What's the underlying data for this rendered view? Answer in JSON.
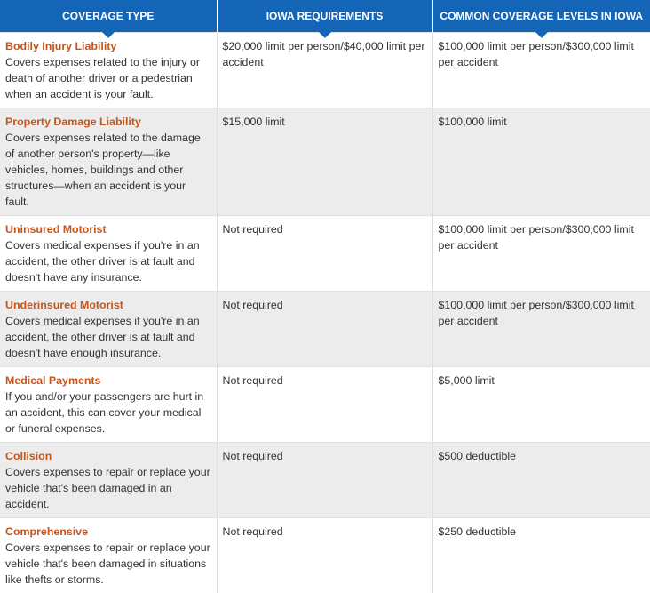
{
  "headers": [
    "COVERAGE TYPE",
    "IOWA REQUIREMENTS",
    "COMMON COVERAGE LEVELS IN IOWA"
  ],
  "rows": [
    {
      "title": "Bodily Injury Liability",
      "desc": "Covers expenses related to the injury or death of another driver or a pedestrian when an accident is your fault.",
      "requirement": "$20,000 limit per person/$40,000 limit per accident",
      "common": "$100,000 limit per person/$300,000 limit per accident"
    },
    {
      "title": "Property Damage Liability",
      "desc": "Covers expenses related to the damage of another person's property—like vehicles, homes, buildings and other structures—when an accident is your fault.",
      "requirement": "$15,000 limit",
      "common": "$100,000 limit"
    },
    {
      "title": "Uninsured Motorist",
      "desc": "Covers medical expenses if you're in an accident, the other driver is at fault and doesn't have any insurance.",
      "requirement": "Not required",
      "common": "$100,000 limit per person/$300,000 limit per accident"
    },
    {
      "title": "Underinsured Motorist",
      "desc": "Covers medical expenses if you're in an accident, the other driver is at fault and doesn't have enough insurance.",
      "requirement": "Not required",
      "common": "$100,000 limit per person/$300,000 limit per accident"
    },
    {
      "title": "Medical Payments",
      "desc": "If you and/or your passengers are hurt in an accident, this can cover your medical or funeral expenses.",
      "requirement": "Not required",
      "common": "$5,000 limit"
    },
    {
      "title": "Collision",
      "desc": "Covers expenses to repair or replace your vehicle that's been damaged in an accident.",
      "requirement": "Not required",
      "common": "$500 deductible"
    },
    {
      "title": "Comprehensive",
      "desc": "Covers expenses to repair or replace your vehicle that's been damaged in situations like thefts or storms.",
      "requirement": "Not required",
      "common": "$250 deductible"
    }
  ]
}
